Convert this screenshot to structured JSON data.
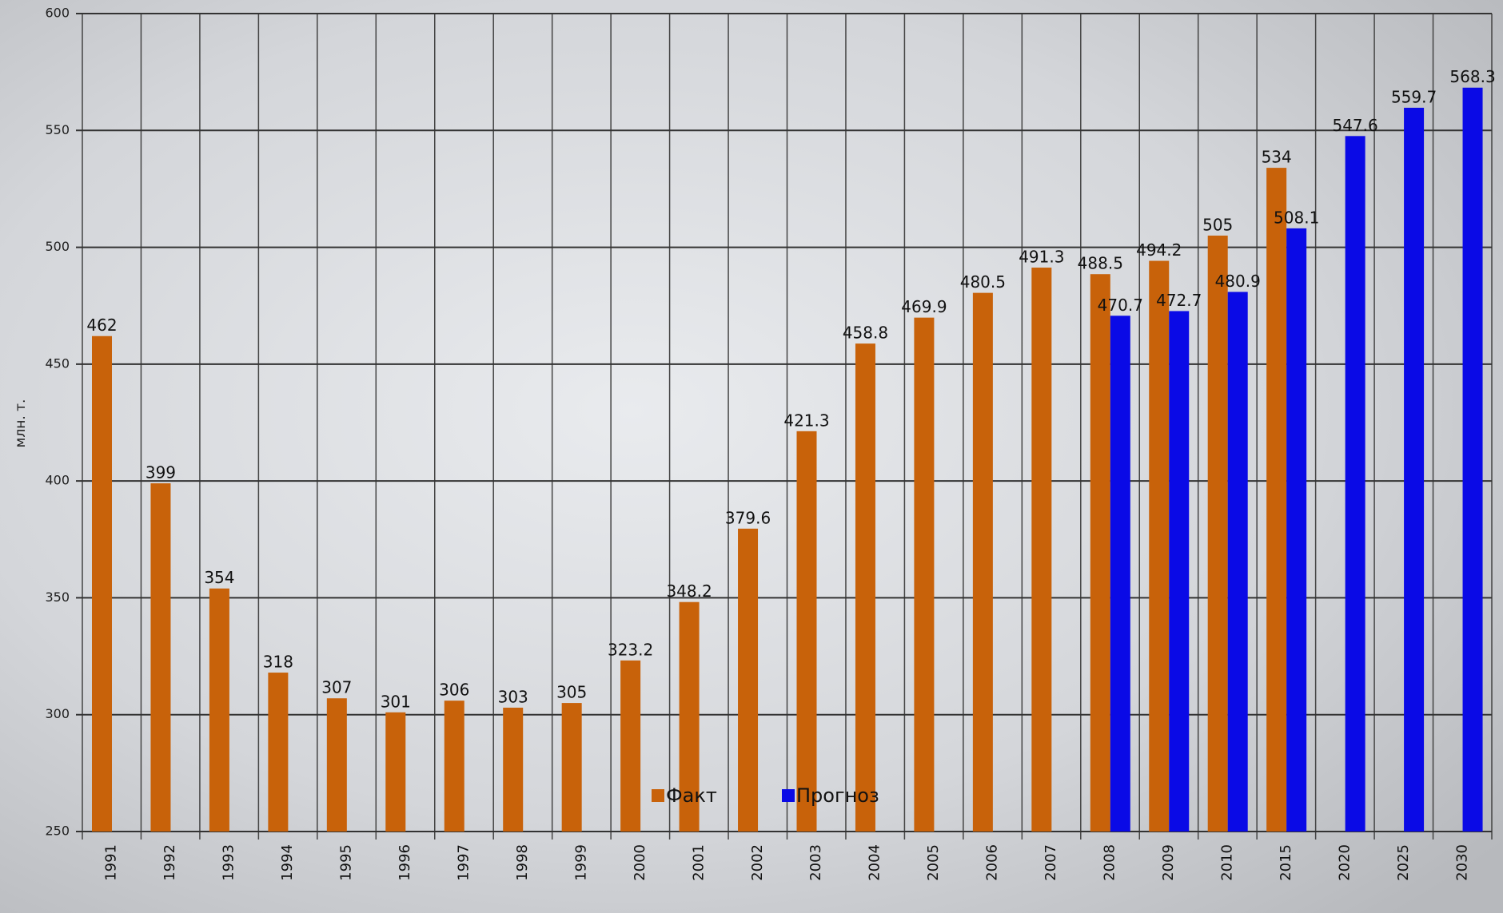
{
  "chart_data": {
    "type": "bar",
    "y_label": "млн. т.",
    "categories": [
      "1991",
      "1992",
      "1993",
      "1994",
      "1995",
      "1996",
      "1997",
      "1998",
      "1999",
      "2000",
      "2001",
      "2002",
      "2003",
      "2004",
      "2005",
      "2006",
      "2007",
      "2008",
      "2009",
      "2010",
      "2015",
      "2020",
      "2025",
      "2030"
    ],
    "series": [
      {
        "name": "Факт",
        "color": "#c8620a",
        "values": [
          462,
          399,
          354,
          318,
          307,
          301,
          306,
          303,
          305,
          323.2,
          348.2,
          379.6,
          421.3,
          458.8,
          469.9,
          480.5,
          491.3,
          488.5,
          494.2,
          505,
          534,
          null,
          null,
          null
        ]
      },
      {
        "name": "Прогноз",
        "color": "#0a0ae6",
        "values": [
          null,
          null,
          null,
          null,
          null,
          null,
          null,
          null,
          null,
          null,
          null,
          null,
          null,
          null,
          null,
          null,
          null,
          470.7,
          472.7,
          480.9,
          508.1,
          547.6,
          559.7,
          568.3
        ]
      }
    ],
    "ylim": [
      250,
      600
    ],
    "yticks": [
      250,
      300,
      350,
      400,
      450,
      500,
      550,
      600
    ],
    "grid": true
  }
}
